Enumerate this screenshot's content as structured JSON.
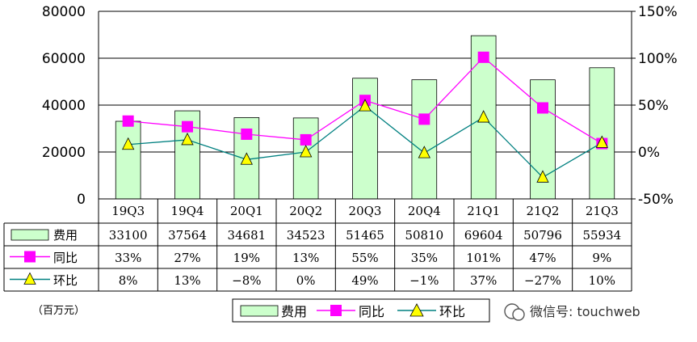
{
  "chart_data": {
    "type": "bar",
    "categories": [
      "19Q3",
      "19Q4",
      "20Q1",
      "20Q2",
      "20Q3",
      "20Q4",
      "21Q1",
      "21Q2",
      "21Q3"
    ],
    "series": [
      {
        "name": "费用",
        "type": "bar",
        "axis": "left",
        "values": [
          33100,
          37564,
          34681,
          34523,
          51465,
          50810,
          69604,
          50796,
          55934
        ],
        "labels": [
          "33100",
          "37564",
          "34681",
          "34523",
          "51465",
          "50810",
          "69604",
          "50796",
          "55934"
        ]
      },
      {
        "name": "同比",
        "type": "line",
        "axis": "right",
        "values": [
          33,
          27,
          19,
          13,
          55,
          35,
          101,
          47,
          9
        ],
        "labels": [
          "33%",
          "27%",
          "19%",
          "13%",
          "55%",
          "35%",
          "101%",
          "47%",
          "9%"
        ]
      },
      {
        "name": "环比",
        "type": "line",
        "axis": "right",
        "values": [
          8,
          13,
          -8,
          0,
          49,
          -1,
          37,
          -27,
          10
        ],
        "labels": [
          "8%",
          "13%",
          "−8%",
          "0%",
          "49%",
          "−1%",
          "37%",
          "−27%",
          "10%"
        ]
      }
    ],
    "ylim_left": [
      0,
      80000
    ],
    "yticks_left": [
      "80000",
      "60000",
      "40000",
      "20000",
      "0"
    ],
    "ylim_right": [
      -50,
      150
    ],
    "yticks_right": [
      "150%",
      "100%",
      "50%",
      "0%",
      "-50%"
    ],
    "grid": true,
    "legend_position": "bottom",
    "unit_note": "（百万元）",
    "colors": {
      "bar_fill": "#ccffcc",
      "yoy": "#ff00ff",
      "qoq": "#008080",
      "qoq_marker": "#ffff00"
    }
  },
  "legend": {
    "items": [
      "费用",
      "同比",
      "环比"
    ]
  },
  "watermark": "微信号: touchweb"
}
